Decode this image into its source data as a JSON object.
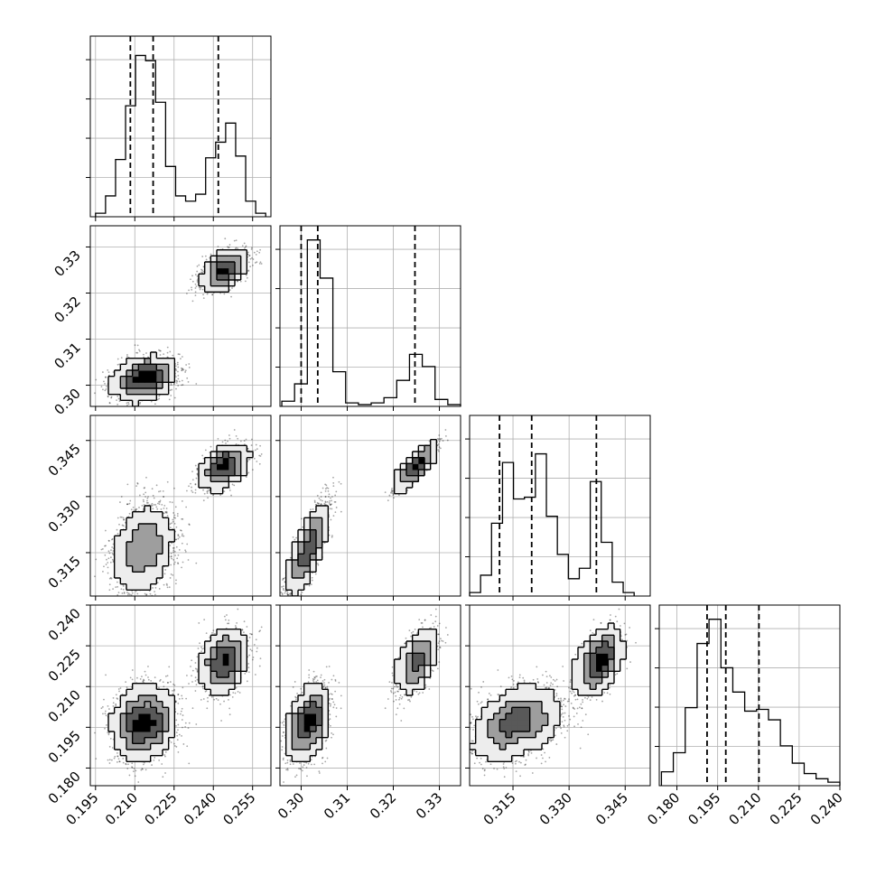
{
  "chart_data": {
    "type": "corner",
    "grid": true,
    "parameters": [
      {
        "ticks": [
          "0.195",
          "0.210",
          "0.225",
          "0.240",
          "0.255"
        ],
        "tick_values": [
          0.195,
          0.21,
          0.225,
          0.24,
          0.255
        ],
        "range": [
          0.193,
          0.262
        ]
      },
      {
        "ticks": [
          "0.30",
          "0.31",
          "0.32",
          "0.33"
        ],
        "tick_values": [
          0.3,
          0.31,
          0.32,
          0.33
        ],
        "range": [
          0.2954,
          0.3346
        ]
      },
      {
        "ticks": [
          "0.315",
          "0.330",
          "0.345"
        ],
        "tick_values": [
          0.315,
          0.33,
          0.345
        ],
        "range": [
          0.3034,
          0.3517
        ]
      },
      {
        "ticks": [
          "0.180",
          "0.195",
          "0.210",
          "0.225",
          "0.240"
        ],
        "tick_values": [
          0.18,
          0.195,
          0.21,
          0.225,
          0.24
        ],
        "range": [
          0.1735,
          0.24
        ]
      }
    ],
    "histograms": [
      {
        "quantiles": [
          0.2083,
          0.217,
          0.2419
        ],
        "edges_range": [
          0.195,
          0.26
        ],
        "counts": [
          0.02,
          0.12,
          0.33,
          0.64,
          0.93,
          0.9,
          0.66,
          0.29,
          0.12,
          0.09,
          0.13,
          0.34,
          0.43,
          0.54,
          0.35,
          0.09,
          0.02
        ]
      },
      {
        "quantiles": [
          0.3,
          0.3036,
          0.3247
        ],
        "edges_range": [
          0.2958,
          0.3346
        ],
        "counts": [
          0.03,
          0.13,
          0.96,
          0.74,
          0.2,
          0.02,
          0.01,
          0.02,
          0.05,
          0.15,
          0.3,
          0.23,
          0.04,
          0.01
        ]
      },
      {
        "quantiles": [
          0.3114,
          0.32,
          0.3373
        ],
        "edges_range": [
          0.3034,
          0.3474
        ],
        "counts": [
          0.02,
          0.12,
          0.42,
          0.77,
          0.56,
          0.57,
          0.82,
          0.46,
          0.24,
          0.1,
          0.16,
          0.66,
          0.31,
          0.08,
          0.02
        ]
      },
      {
        "quantiles": [
          0.1911,
          0.198,
          0.2102
        ],
        "edges_range": [
          0.1743,
          0.24
        ],
        "counts": [
          0.08,
          0.19,
          0.45,
          0.82,
          0.96,
          0.68,
          0.54,
          0.43,
          0.44,
          0.38,
          0.23,
          0.13,
          0.07,
          0.04,
          0.02
        ]
      }
    ],
    "modes": [
      {
        "weight": 0.62,
        "mean": [
          0.2135,
          0.3015,
          0.316,
          0.1965
        ],
        "sd": [
          0.0058,
          0.0022,
          0.006,
          0.0068
        ],
        "rho": [
          [
            1,
            0.3,
            0.3,
            0.3
          ],
          [
            0.3,
            1,
            0.8,
            0.4
          ],
          [
            0.3,
            0.8,
            1,
            0.4
          ],
          [
            0.3,
            0.4,
            0.4,
            1
          ]
        ]
      },
      {
        "weight": 0.38,
        "mean": [
          0.244,
          0.325,
          0.338,
          0.219
        ],
        "sd": [
          0.0044,
          0.0022,
          0.003,
          0.006
        ],
        "rho": [
          [
            1,
            0.5,
            0.5,
            0.4
          ],
          [
            0.5,
            1,
            0.9,
            0.5
          ],
          [
            0.5,
            0.9,
            1,
            0.6
          ],
          [
            0.4,
            0.5,
            0.6,
            1
          ]
        ]
      }
    ]
  }
}
